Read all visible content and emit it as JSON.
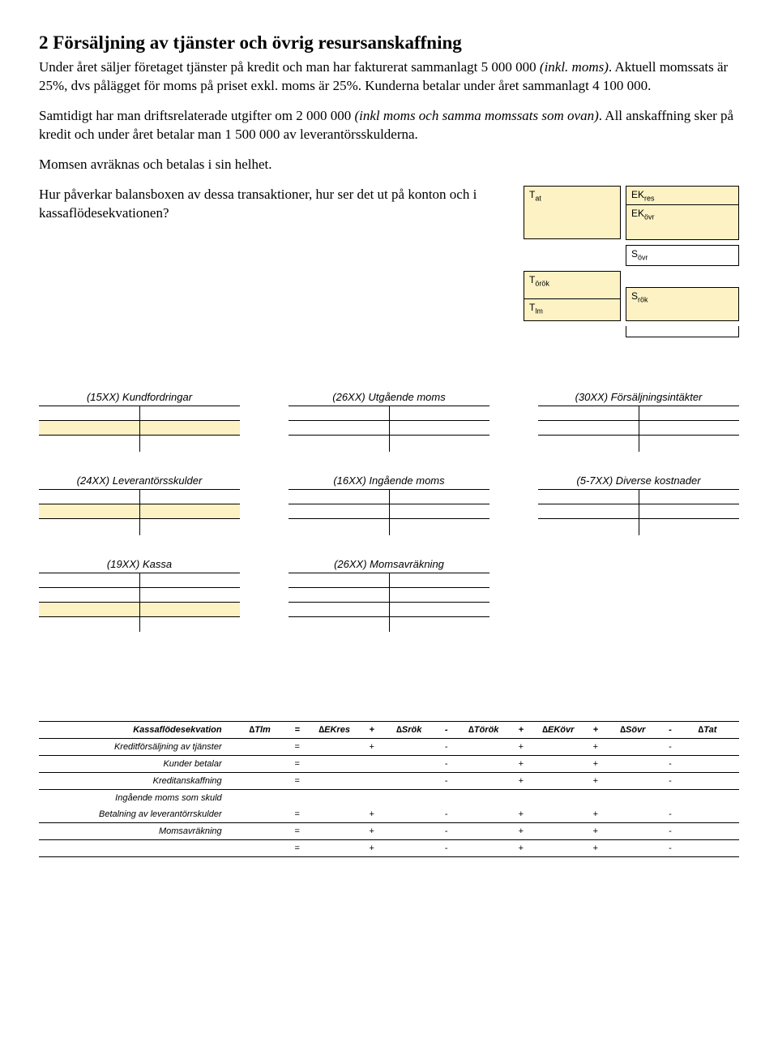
{
  "colors": {
    "highlight": "#fdf2c4",
    "border": "#000000",
    "text": "#000000",
    "background": "#ffffff"
  },
  "heading": "2  Försäljning av tjänster och övrig resursanskaffning",
  "paragraphs": {
    "p1a": "Under året säljer företaget tjänster på kredit och man har fakturerat sammanlagt 5 000 000 ",
    "p1b": "(inkl. moms)",
    "p1c": ". Aktuell momssats är 25%, dvs pålägget för moms på priset exkl. moms är 25%. Kunderna betalar under året sammanlagt 4 100 000.",
    "p2a": "Samtidigt har man driftsrelaterade utgifter om 2 000 000 ",
    "p2b": "(inkl moms och samma momssats som ovan)",
    "p2c": ". All anskaffning sker på kredit och under året betalar man 1 500 000 av leverantörsskulderna.",
    "p3": "Momsen avräknas och betalas i sin helhet.",
    "q": "Hur påverkar balansboxen av dessa transaktioner, hur ser det ut på konton och i kassaflödesekvationen?"
  },
  "balance": {
    "Tat": {
      "base": "T",
      "sub": "at"
    },
    "EKres": {
      "base": "EK",
      "sub": "res"
    },
    "EKovr": {
      "base": "EK",
      "sub": "övr"
    },
    "Sovr": {
      "base": "S",
      "sub": "övr"
    },
    "Torok": {
      "base": "T",
      "sub": "örök"
    },
    "Tlm": {
      "base": "T",
      "sub": "lm"
    },
    "Srok": {
      "base": "S",
      "sub": "rök"
    }
  },
  "taccounts": {
    "a": "(15XX)  Kundfordringar",
    "b": "(26XX)  Utgående moms",
    "c": "(30XX)  Försäljningsintäkter",
    "d": "(24XX)  Leverantörsskulder",
    "e": "(16XX)  Ingående moms",
    "f": "(5-7XX)  Diverse kostnader",
    "g": "(19XX)  Kassa",
    "h": "(26XX)  Momsavräkning"
  },
  "kf": {
    "title": "Kassaflödesekvation",
    "headers": {
      "dTlm": "∆Tlm",
      "eq": "=",
      "dEKres": "∆EKres",
      "plus": "+",
      "dSrok": "∆Srök",
      "minus": "-",
      "dTorok": "∆Török",
      "dEKovr": "∆EKövr",
      "dSovr": "∆Sövr",
      "dTat": "∆Tat"
    },
    "rows": [
      {
        "label": "Kreditförsäljning av tjänster",
        "cells": [
          "",
          "=",
          "",
          "+",
          "",
          "-",
          "",
          "+",
          "",
          "+",
          "",
          "-",
          ""
        ]
      },
      {
        "label": "Kunder betalar",
        "cells": [
          "",
          "=",
          "",
          "",
          "",
          "-",
          "",
          "+",
          "",
          "+",
          "",
          "-",
          ""
        ]
      },
      {
        "label": "Kreditanskaffning",
        "cells": [
          "",
          "=",
          "",
          "",
          "",
          "-",
          "",
          "+",
          "",
          "+",
          "",
          "-",
          ""
        ]
      },
      {
        "label": "Ingående moms som skuld",
        "cells": [
          "",
          "",
          "",
          "",
          "",
          "",
          "",
          "",
          "",
          "",
          "",
          "",
          ""
        ],
        "noline": true
      },
      {
        "label": "Betalning av leverantörrskulder",
        "cells": [
          "",
          "=",
          "",
          "+",
          "",
          "-",
          "",
          "+",
          "",
          "+",
          "",
          "-",
          ""
        ]
      },
      {
        "label": "Momsavräkning",
        "cells": [
          "",
          "=",
          "",
          "+",
          "",
          "-",
          "",
          "+",
          "",
          "+",
          "",
          "-",
          ""
        ]
      },
      {
        "label": "",
        "cells": [
          "",
          "=",
          "",
          "+",
          "",
          "-",
          "",
          "+",
          "",
          "+",
          "",
          "-",
          ""
        ]
      }
    ]
  }
}
